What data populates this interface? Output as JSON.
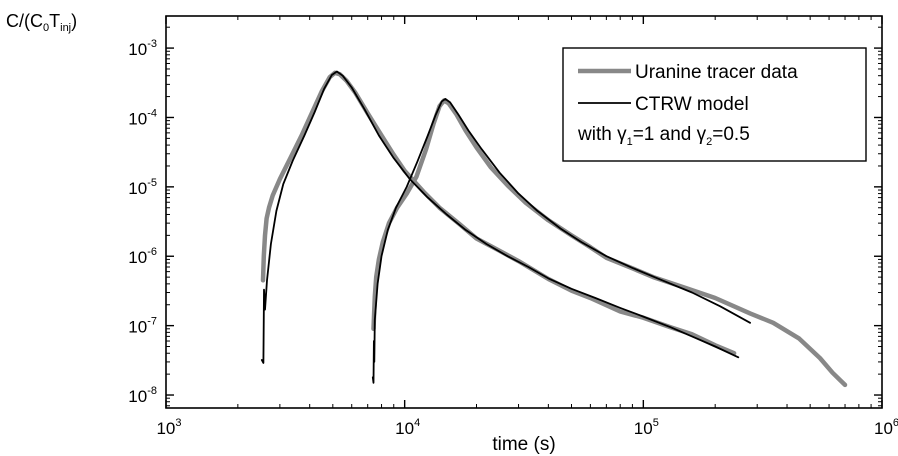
{
  "chart_data": {
    "type": "line",
    "xlabel": "time (s)",
    "ylabel": {
      "main": "C/(C",
      "sub0": "0",
      "mid": "T",
      "sub1": "inj",
      "tail": ")"
    },
    "x_scale": "log",
    "y_scale": "log",
    "xlim": [
      1000,
      1000000
    ],
    "ylim": [
      6.5e-09,
      0.0029
    ],
    "x_ticks": [
      {
        "value": 1000,
        "base": "10",
        "exp": "3"
      },
      {
        "value": 10000,
        "base": "10",
        "exp": "4"
      },
      {
        "value": 100000,
        "base": "10",
        "exp": "5"
      },
      {
        "value": 1000000,
        "base": "10",
        "exp": "6"
      }
    ],
    "y_ticks": [
      {
        "value": 1e-08,
        "base": "10",
        "exp": "-8"
      },
      {
        "value": 1e-07,
        "base": "10",
        "exp": "-7"
      },
      {
        "value": 1e-06,
        "base": "10",
        "exp": "-6"
      },
      {
        "value": 1e-05,
        "base": "10",
        "exp": "-5"
      },
      {
        "value": 0.0001,
        "base": "10",
        "exp": "-4"
      },
      {
        "value": 0.001,
        "base": "10",
        "exp": "-3"
      }
    ],
    "grid": false,
    "legend_position": "top-right",
    "legend": {
      "entries": [
        "Uranine tracer data",
        "CTRW model"
      ],
      "note": {
        "prefix": "with ",
        "g": "γ",
        "s1": "1",
        "mid": "=1 and ",
        "s2": "2",
        "tail": "=0.5"
      }
    },
    "series": [
      {
        "name": "Uranine tracer data",
        "color": "#888888",
        "style": "thick",
        "points": [
          [
            2550,
            4.5e-07
          ],
          [
            2570,
            1e-06
          ],
          [
            2600,
            2e-06
          ],
          [
            2640,
            3.5e-06
          ],
          [
            2700,
            5e-06
          ],
          [
            2800,
            7.5e-06
          ],
          [
            3000,
            1.3e-05
          ],
          [
            3300,
            2.5e-05
          ],
          [
            3700,
            5.5e-05
          ],
          [
            4100,
            0.00012
          ],
          [
            4500,
            0.00024
          ],
          [
            4850,
            0.00038
          ],
          [
            5100,
            0.00044
          ],
          [
            5350,
            0.00042
          ],
          [
            5700,
            0.00034
          ],
          [
            6200,
            0.00023
          ],
          [
            7000,
            0.000115
          ],
          [
            8000,
            5.5e-05
          ],
          [
            9000,
            2.9e-05
          ],
          [
            10000,
            1.7e-05
          ],
          [
            12000,
            8.5e-06
          ],
          [
            14000,
            5e-06
          ],
          [
            17000,
            2.9e-06
          ],
          [
            20000,
            1.8e-06
          ],
          [
            25000,
            1.2e-06
          ],
          [
            30000,
            8.5e-07
          ],
          [
            40000,
            4.7e-07
          ],
          [
            50000,
            3.2e-07
          ],
          [
            60000,
            2.5e-07
          ],
          [
            80000,
            1.6e-07
          ],
          [
            100000,
            1.3e-07
          ],
          [
            130000,
            9.5e-08
          ],
          [
            160000,
            7.5e-08
          ],
          [
            200000,
            5.2e-08
          ],
          [
            240000,
            4e-08
          ]
        ]
      },
      {
        "name": "Uranine tracer data",
        "color": "#888888",
        "style": "thick",
        "points": [
          [
            7400,
            9e-08
          ],
          [
            7450,
            1.6e-07
          ],
          [
            7500,
            2.6e-07
          ],
          [
            7600,
            5e-07
          ],
          [
            7800,
            9e-07
          ],
          [
            8100,
            1.6e-06
          ],
          [
            8600,
            3e-06
          ],
          [
            9300,
            5e-06
          ],
          [
            10200,
            8e-06
          ],
          [
            11200,
            1.4e-05
          ],
          [
            12300,
            3.5e-05
          ],
          [
            13200,
            8e-05
          ],
          [
            14000,
            0.000145
          ],
          [
            14600,
            0.000175
          ],
          [
            15300,
            0.00016
          ],
          [
            16500,
            0.00011
          ],
          [
            18000,
            6.5e-05
          ],
          [
            20000,
            3.7e-05
          ],
          [
            23000,
            1.9e-05
          ],
          [
            27000,
            1.05e-05
          ],
          [
            32000,
            6e-06
          ],
          [
            40000,
            3.3e-06
          ],
          [
            50000,
            2e-06
          ],
          [
            60000,
            1.35e-06
          ],
          [
            70000,
            9.5e-07
          ],
          [
            90000,
            6.7e-07
          ],
          [
            110000,
            5e-07
          ],
          [
            150000,
            3.5e-07
          ],
          [
            200000,
            2.5e-07
          ],
          [
            280000,
            1.5e-07
          ],
          [
            350000,
            1.1e-07
          ],
          [
            450000,
            6.5e-08
          ],
          [
            550000,
            3.4e-08
          ],
          [
            620000,
            2.1e-08
          ],
          [
            700000,
            1.4e-08
          ]
        ]
      },
      {
        "name": "CTRW model",
        "color": "#000000",
        "style": "thin",
        "points": [
          [
            2520,
            3.2e-08
          ],
          [
            2560,
            2.9e-08
          ],
          [
            2575,
            3.3e-07
          ],
          [
            2600,
            1.7e-07
          ],
          [
            2650,
            4.5e-07
          ],
          [
            2750,
            1.5e-06
          ],
          [
            2900,
            4.5e-06
          ],
          [
            3100,
            1.1e-05
          ],
          [
            3400,
            2.4e-05
          ],
          [
            3800,
            5.5e-05
          ],
          [
            4200,
            0.00012
          ],
          [
            4600,
            0.00026
          ],
          [
            4950,
            0.00041
          ],
          [
            5200,
            0.00046
          ],
          [
            5500,
            0.0004
          ],
          [
            6000,
            0.00027
          ],
          [
            6800,
            0.00013
          ],
          [
            7800,
            5.5e-05
          ],
          [
            9000,
            2.6e-05
          ],
          [
            10500,
            1.3e-05
          ],
          [
            12500,
            7e-06
          ],
          [
            15000,
            4e-06
          ],
          [
            18000,
            2.4e-06
          ],
          [
            22000,
            1.5e-06
          ],
          [
            27000,
            1e-06
          ],
          [
            33000,
            7e-07
          ],
          [
            40000,
            4.8e-07
          ],
          [
            50000,
            3.4e-07
          ],
          [
            63000,
            2.5e-07
          ],
          [
            80000,
            1.8e-07
          ],
          [
            100000,
            1.35e-07
          ],
          [
            130000,
            9.5e-08
          ],
          [
            160000,
            7e-08
          ],
          [
            200000,
            5e-08
          ],
          [
            250000,
            3.5e-08
          ]
        ]
      },
      {
        "name": "CTRW model",
        "color": "#000000",
        "style": "thin",
        "points": [
          [
            7350,
            1.8e-08
          ],
          [
            7400,
            1.5e-08
          ],
          [
            7430,
            6e-08
          ],
          [
            7460,
            3e-08
          ],
          [
            7500,
            1.2e-07
          ],
          [
            7700,
            4e-07
          ],
          [
            8000,
            1e-06
          ],
          [
            8500,
            2.4e-06
          ],
          [
            9200,
            5e-06
          ],
          [
            10200,
            1e-05
          ],
          [
            11300,
            2.3e-05
          ],
          [
            12500,
            5.5e-05
          ],
          [
            13500,
            0.00011
          ],
          [
            14300,
            0.00017
          ],
          [
            14800,
            0.000185
          ],
          [
            15500,
            0.000165
          ],
          [
            16800,
            0.00011
          ],
          [
            18500,
            6.5e-05
          ],
          [
            21000,
            3.5e-05
          ],
          [
            25000,
            1.6e-05
          ],
          [
            30000,
            8e-06
          ],
          [
            36000,
            4.5e-06
          ],
          [
            45000,
            2.5e-06
          ],
          [
            55000,
            1.6e-06
          ],
          [
            70000,
            1e-06
          ],
          [
            90000,
            6.8e-07
          ],
          [
            120000,
            4.5e-07
          ],
          [
            160000,
            3e-07
          ],
          [
            210000,
            1.9e-07
          ],
          [
            280000,
            1.1e-07
          ]
        ]
      }
    ]
  }
}
